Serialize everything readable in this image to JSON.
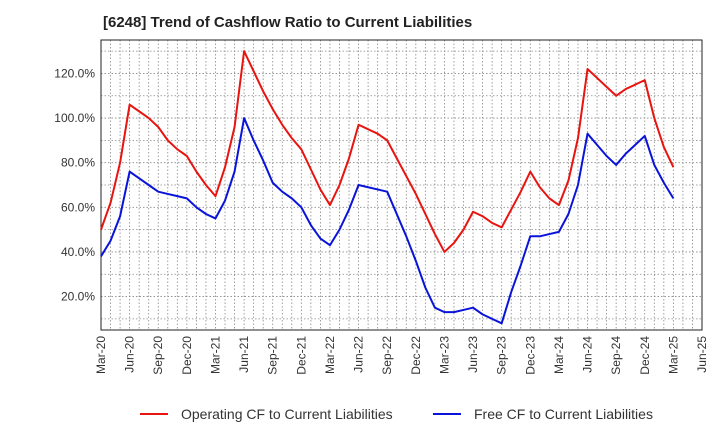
{
  "chart_data": {
    "type": "line",
    "title": "[6248]  Trend of Cashflow Ratio to Current Liabilities",
    "xlabel": "",
    "ylabel": "",
    "ylim": [
      5,
      135
    ],
    "y_ticks": [
      20,
      40,
      60,
      80,
      100,
      120
    ],
    "y_tick_labels": [
      "20.0%",
      "40.0%",
      "60.0%",
      "80.0%",
      "100.0%",
      "120.0%"
    ],
    "x_tick_labels": [
      "Mar-20",
      "Jun-20",
      "Sep-20",
      "Dec-20",
      "Mar-21",
      "Jun-21",
      "Sep-21",
      "Dec-21",
      "Mar-22",
      "Jun-22",
      "Sep-22",
      "Dec-22",
      "Mar-23",
      "Jun-23",
      "Sep-23",
      "Dec-23",
      "Mar-24",
      "Jun-24",
      "Sep-24",
      "Dec-24",
      "Mar-25",
      "Jun-25"
    ],
    "grid": true,
    "legend_position": "bottom",
    "x": [
      "2020-03",
      "2020-04",
      "2020-05",
      "2020-06",
      "2020-07",
      "2020-08",
      "2020-09",
      "2020-10",
      "2020-11",
      "2020-12",
      "2021-01",
      "2021-02",
      "2021-03",
      "2021-04",
      "2021-05",
      "2021-06",
      "2021-07",
      "2021-08",
      "2021-09",
      "2021-10",
      "2021-11",
      "2021-12",
      "2022-01",
      "2022-02",
      "2022-03",
      "2022-04",
      "2022-05",
      "2022-06",
      "2022-07",
      "2022-08",
      "2022-09",
      "2022-10",
      "2022-11",
      "2022-12",
      "2023-01",
      "2023-02",
      "2023-03",
      "2023-04",
      "2023-05",
      "2023-06",
      "2023-07",
      "2023-08",
      "2023-09",
      "2023-10",
      "2023-11",
      "2023-12",
      "2024-01",
      "2024-02",
      "2024-03",
      "2024-04",
      "2024-05",
      "2024-06",
      "2024-07",
      "2024-08",
      "2024-09",
      "2024-10",
      "2024-11",
      "2024-12",
      "2025-01",
      "2025-02",
      "2025-03"
    ],
    "series": [
      {
        "name": "Operating CF to Current Liabilities",
        "color": "#e8140f",
        "values": [
          50,
          62,
          80,
          106,
          103,
          100,
          96,
          90,
          86,
          83,
          76,
          70,
          65,
          78,
          96,
          130,
          121,
          112,
          104,
          97,
          91,
          86,
          77,
          68,
          61,
          70,
          82,
          97,
          95,
          93,
          90,
          82,
          74,
          66,
          57,
          48,
          40,
          44,
          50,
          58,
          56,
          53,
          51,
          59,
          67,
          76,
          69,
          64,
          61,
          72,
          91,
          122,
          118,
          114,
          110,
          113,
          115,
          117,
          100,
          87,
          78
        ]
      },
      {
        "name": "Free CF to Current Liabilities",
        "color": "#0a14d9",
        "values": [
          38,
          45,
          56,
          76,
          73,
          70,
          67,
          66,
          65,
          64,
          60,
          57,
          55,
          63,
          76,
          100,
          90,
          81,
          71,
          67,
          64,
          60,
          52,
          46,
          43,
          50,
          59,
          70,
          69,
          68,
          67,
          57,
          47,
          36,
          24,
          15,
          13,
          13,
          14,
          15,
          12,
          10,
          8,
          22,
          34,
          47,
          47,
          48,
          49,
          57,
          70,
          93,
          88,
          83,
          79,
          84,
          88,
          92,
          79,
          71,
          64
        ]
      }
    ]
  }
}
